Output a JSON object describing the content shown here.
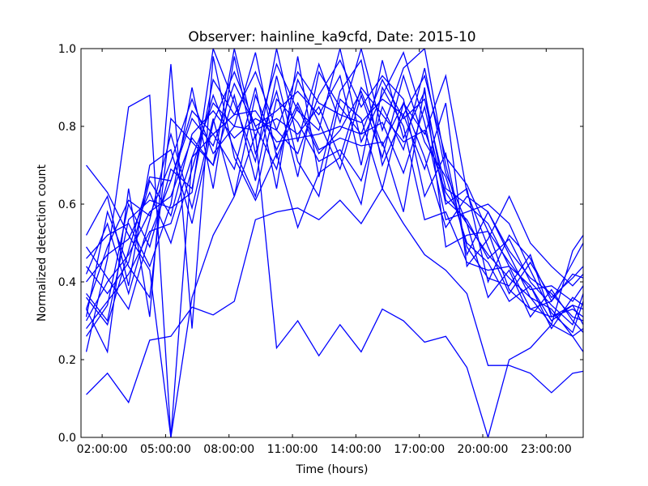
{
  "chart_data": {
    "type": "line",
    "title": "Observer: hainline_ka9cfd, Date: 2015-10",
    "xlabel": "Time (hours)",
    "ylabel": "Normalized detection count",
    "x_unit": "hours",
    "xlim": [
      1.0,
      24.75
    ],
    "ylim": [
      0.0,
      1.0
    ],
    "x_ticks": [
      {
        "value": 2,
        "label": "02:00:00"
      },
      {
        "value": 5,
        "label": "05:00:00"
      },
      {
        "value": 8,
        "label": "08:00:00"
      },
      {
        "value": 11,
        "label": "11:00:00"
      },
      {
        "value": 14,
        "label": "14:00:00"
      },
      {
        "value": 17,
        "label": "17:00:00"
      },
      {
        "value": 20,
        "label": "20:00:00"
      },
      {
        "value": 23,
        "label": "23:00:00"
      }
    ],
    "y_ticks": [
      {
        "value": 0.0,
        "label": "0.0"
      },
      {
        "value": 0.2,
        "label": "0.2"
      },
      {
        "value": 0.4,
        "label": "0.4"
      },
      {
        "value": 0.6,
        "label": "0.6"
      },
      {
        "value": 0.8,
        "label": "0.8"
      },
      {
        "value": 1.0,
        "label": "1.0"
      }
    ],
    "grid": false,
    "legend": "none",
    "line_color": "#0000ff",
    "x": [
      1.25,
      2.25,
      3.25,
      4.25,
      5.25,
      6.25,
      7.25,
      8.25,
      9.25,
      10.25,
      11.25,
      12.25,
      13.25,
      14.25,
      15.25,
      16.25,
      17.25,
      18.25,
      19.25,
      20.25,
      21.25,
      22.25,
      23.25,
      24.25,
      24.75
    ],
    "series": [
      {
        "values": [
          0.11,
          0.165,
          0.09,
          0.25,
          0.26,
          0.335,
          0.315,
          0.35,
          0.56,
          0.58,
          0.59,
          0.56,
          0.61,
          0.55,
          0.64,
          0.55,
          0.47,
          0.43,
          0.37,
          0.185,
          0.185,
          0.165,
          0.115,
          0.165,
          0.17
        ]
      },
      {
        "values": [
          0.7,
          0.63,
          0.52,
          0.43,
          0.0,
          0.36,
          0.52,
          0.62,
          0.78,
          0.23,
          0.3,
          0.21,
          0.29,
          0.22,
          0.33,
          0.3,
          0.245,
          0.26,
          0.18,
          0.0,
          0.2,
          0.23,
          0.29,
          0.26,
          0.22
        ]
      },
      {
        "values": [
          0.22,
          0.46,
          0.85,
          0.88,
          0.0,
          0.72,
          0.78,
          0.83,
          0.84,
          0.76,
          0.77,
          0.78,
          0.8,
          0.78,
          0.92,
          0.82,
          0.87,
          0.64,
          0.6,
          0.55,
          0.44,
          0.39,
          0.3,
          0.34,
          0.33
        ]
      },
      {
        "values": [
          0.33,
          0.22,
          0.64,
          0.31,
          0.96,
          0.28,
          0.98,
          0.72,
          0.61,
          0.73,
          0.54,
          0.68,
          0.72,
          0.6,
          0.9,
          0.8,
          0.56,
          0.58,
          0.45,
          0.43,
          0.44,
          0.33,
          0.35,
          0.42,
          0.41
        ]
      },
      {
        "values": [
          0.28,
          0.35,
          0.42,
          0.53,
          0.55,
          0.72,
          0.86,
          0.8,
          0.79,
          0.82,
          0.78,
          0.85,
          0.72,
          0.9,
          0.83,
          0.76,
          0.79,
          0.63,
          0.55,
          0.47,
          0.41,
          0.36,
          0.33,
          0.26,
          0.28
        ]
      },
      {
        "values": [
          0.3,
          0.4,
          0.47,
          0.58,
          0.62,
          0.77,
          0.7,
          0.88,
          0.66,
          0.93,
          0.71,
          0.62,
          0.87,
          0.82,
          0.64,
          0.86,
          0.72,
          0.54,
          0.62,
          0.58,
          0.48,
          0.41,
          0.37,
          0.31,
          0.3
        ]
      },
      {
        "values": [
          0.42,
          0.55,
          0.37,
          0.56,
          0.78,
          0.59,
          0.82,
          0.62,
          0.88,
          0.74,
          0.86,
          0.74,
          0.77,
          0.75,
          0.76,
          0.58,
          0.9,
          0.49,
          0.52,
          0.53,
          0.38,
          0.33,
          0.31,
          0.34,
          0.29
        ]
      },
      {
        "values": [
          0.36,
          0.29,
          0.48,
          0.67,
          0.66,
          0.82,
          0.75,
          0.91,
          0.8,
          0.69,
          0.92,
          0.81,
          0.69,
          0.88,
          0.72,
          0.93,
          0.76,
          0.67,
          0.5,
          0.45,
          0.35,
          0.39,
          0.28,
          0.36,
          0.34
        ]
      },
      {
        "values": [
          0.46,
          0.52,
          0.55,
          0.44,
          0.6,
          0.9,
          0.64,
          0.98,
          0.73,
          0.89,
          0.67,
          0.94,
          0.85,
          0.78,
          0.81,
          0.68,
          0.85,
          0.6,
          0.64,
          0.4,
          0.52,
          0.46,
          0.35,
          0.45,
          0.5
        ]
      },
      {
        "values": [
          0.26,
          0.34,
          0.6,
          0.49,
          0.69,
          0.64,
          0.92,
          0.83,
          0.94,
          0.79,
          0.73,
          0.88,
          0.97,
          0.85,
          0.93,
          0.87,
          0.62,
          0.73,
          0.47,
          0.58,
          0.47,
          0.36,
          0.29,
          0.48,
          0.52
        ]
      },
      {
        "values": [
          0.4,
          0.47,
          0.51,
          0.63,
          0.5,
          0.69,
          0.88,
          0.74,
          0.62,
          0.87,
          0.81,
          0.71,
          0.74,
          0.66,
          0.85,
          0.74,
          0.95,
          0.68,
          0.55,
          0.36,
          0.43,
          0.31,
          0.38,
          0.3,
          0.27
        ]
      },
      {
        "values": [
          0.31,
          0.58,
          0.44,
          0.36,
          0.82,
          0.76,
          0.7,
          1.0,
          0.77,
          0.96,
          0.84,
          0.79,
          1.0,
          0.76,
          0.88,
          0.99,
          0.81,
          0.56,
          0.58,
          0.6,
          0.55,
          0.43,
          0.32,
          0.27,
          0.35
        ]
      },
      {
        "values": [
          0.49,
          0.41,
          0.33,
          0.52,
          0.66,
          0.84,
          0.78,
          0.69,
          0.9,
          0.64,
          0.98,
          0.67,
          0.89,
          0.97,
          0.7,
          0.83,
          0.69,
          0.86,
          0.44,
          0.51,
          0.62,
          0.5,
          0.44,
          0.39,
          0.42
        ]
      },
      {
        "values": [
          0.37,
          0.3,
          0.56,
          0.61,
          0.59,
          0.63,
          1.0,
          0.86,
          0.71,
          1.0,
          0.76,
          0.96,
          0.81,
          1.0,
          0.79,
          0.95,
          1.0,
          0.7,
          0.49,
          0.41,
          0.39,
          0.47,
          0.31,
          0.33,
          0.31
        ]
      },
      {
        "values": [
          0.52,
          0.62,
          0.39,
          0.7,
          0.74,
          0.55,
          0.81,
          0.94,
          0.8,
          0.84,
          0.89,
          0.83,
          0.93,
          0.7,
          0.97,
          0.77,
          0.89,
          0.61,
          0.56,
          0.46,
          0.51,
          0.4,
          0.34,
          0.29,
          0.37
        ]
      },
      {
        "values": [
          0.33,
          0.49,
          0.61,
          0.57,
          0.71,
          0.87,
          0.73,
          0.8,
          0.99,
          0.72,
          0.85,
          0.73,
          0.79,
          0.89,
          0.75,
          0.86,
          0.78,
          0.93,
          0.63,
          0.49,
          0.37,
          0.45,
          0.36,
          0.41,
          0.44
        ]
      },
      {
        "values": [
          0.44,
          0.37,
          0.45,
          0.66,
          0.57,
          0.78,
          0.84,
          0.77,
          0.82,
          0.79,
          0.94,
          0.86,
          0.83,
          0.81,
          0.87,
          0.83,
          0.93,
          0.72,
          0.65,
          0.53,
          0.45,
          0.38,
          0.39,
          0.35,
          0.39
        ]
      }
    ]
  }
}
